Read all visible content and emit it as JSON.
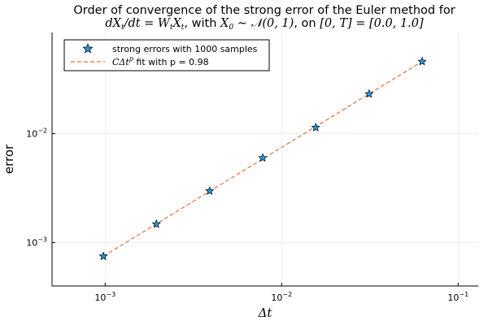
{
  "chart_data": {
    "type": "scatter",
    "title_line1": "Order of convergence of the strong error of the Euler method for",
    "title_line2": "dX_t/dt = W_t X_t, with X_0 ~ N(0,1), on [0,T] = [0.0, 1.0]",
    "xlabel": "Δt",
    "ylabel": "error",
    "x_scale": "log10",
    "y_scale": "log10",
    "xlim": [
      0.0005,
      0.13
    ],
    "ylim": [
      0.0004,
      0.085
    ],
    "x_ticks": [
      {
        "value": 0.001,
        "base": "10",
        "exp": "−3"
      },
      {
        "value": 0.01,
        "base": "10",
        "exp": "−2"
      },
      {
        "value": 0.1,
        "base": "10",
        "exp": "−1"
      }
    ],
    "y_ticks": [
      {
        "value": 0.001,
        "base": "10",
        "exp": "−3"
      },
      {
        "value": 0.01,
        "base": "10",
        "exp": "−2"
      }
    ],
    "grid": true,
    "legend_position": "top-left",
    "series": [
      {
        "name": "strong errors with 1000 samples",
        "kind": "scatter",
        "marker": "star",
        "color": "#1f9be6",
        "x": [
          0.000977,
          0.00195,
          0.00391,
          0.00781,
          0.0156,
          0.0313,
          0.0625
        ],
        "y": [
          0.00075,
          0.00148,
          0.00298,
          0.006,
          0.0114,
          0.0232,
          0.046
        ]
      },
      {
        "name": "CΔt^p fit with p = 0.98",
        "kind": "line",
        "style": "dashed",
        "color": "#e26f46",
        "x": [
          0.000977,
          0.0625
        ],
        "y": [
          0.00075,
          0.046
        ]
      }
    ]
  }
}
